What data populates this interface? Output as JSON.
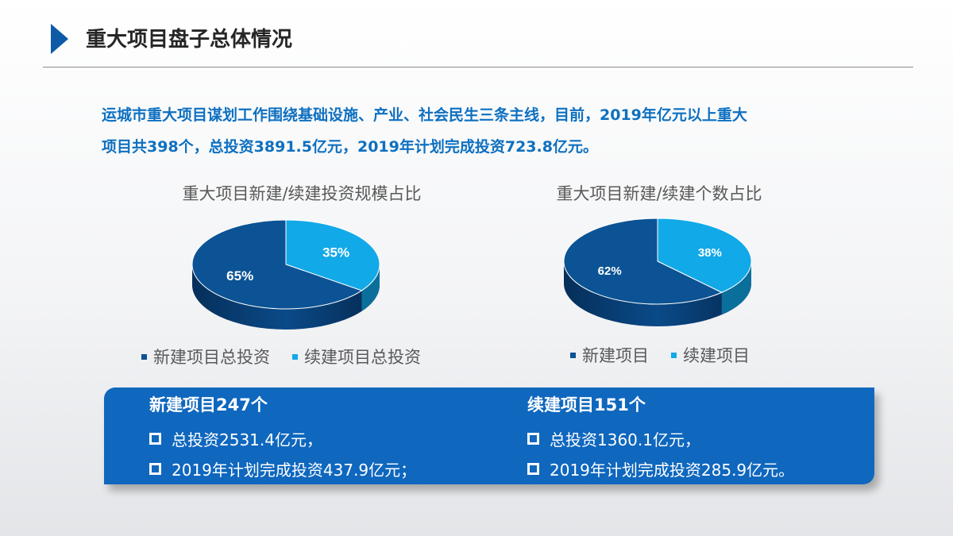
{
  "header": {
    "title": "重大项目盘子总体情况"
  },
  "summary": {
    "line1": "运城市重大项目谋划工作围绕基础设施、产业、社会民生三条主线，目前，2019年亿元以上重大",
    "line2": "项目共398个，总投资3891.5亿元，2019年计划完成投资723.8亿元。"
  },
  "colors": {
    "new": "#0b5394",
    "continued": "#12a9e8",
    "box": "#0f67be",
    "summary_text": "#0e70c0"
  },
  "chart_data": [
    {
      "type": "pie",
      "title": "重大项目新建/续建投资规模占比",
      "categories": [
        "新建项目总投资",
        "续建项目总投资"
      ],
      "values": [
        65,
        35
      ],
      "labels": [
        "65%",
        "35%"
      ],
      "legend": "bottom",
      "style": "3d"
    },
    {
      "type": "pie",
      "title": "重大项目新建/续建个数占比",
      "categories": [
        "新建项目",
        "续建项目"
      ],
      "values": [
        62,
        38
      ],
      "labels": [
        "62%",
        "38%"
      ],
      "legend": "bottom",
      "style": "3d"
    }
  ],
  "info": {
    "new": {
      "heading": "新建项目247个",
      "item1": "总投资2531.4亿元，",
      "item2": "2019年计划完成投资437.9亿元；"
    },
    "continued": {
      "heading": "续建项目151个",
      "item1": "总投资1360.1亿元，",
      "item2": "2019年计划完成投资285.9亿元。"
    }
  }
}
